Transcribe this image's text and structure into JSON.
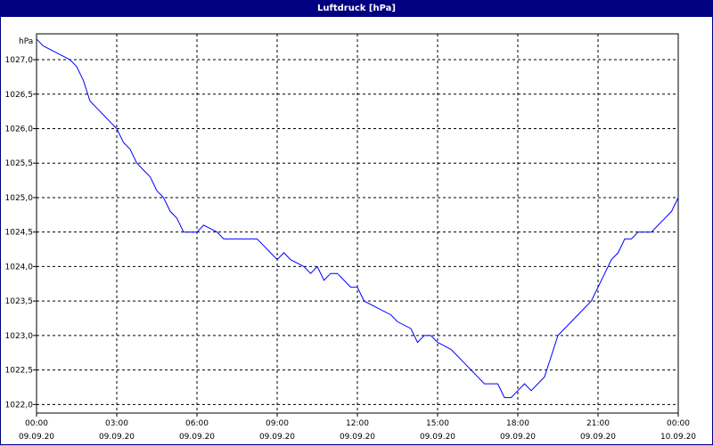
{
  "window": {
    "title": "Luftdruck [hPa]"
  },
  "colors": {
    "title_bar": "#000080",
    "series": "#0000ff",
    "grid": "#000000",
    "background": "#ffffff"
  },
  "chart_data": {
    "type": "line",
    "title": "Luftdruck [hPa]",
    "ylabel": "hPa",
    "xlabel": "",
    "ylim": [
      1021.875,
      1027.375
    ],
    "xlim_hours": [
      0,
      24
    ],
    "grid": true,
    "y_ticks": [
      {
        "value": 1027.0,
        "label": "1027,0"
      },
      {
        "value": 1026.5,
        "label": "1026,5"
      },
      {
        "value": 1026.0,
        "label": "1026,0"
      },
      {
        "value": 1025.5,
        "label": "1025,5"
      },
      {
        "value": 1025.0,
        "label": "1025,0"
      },
      {
        "value": 1024.5,
        "label": "1024,5"
      },
      {
        "value": 1024.0,
        "label": "1024,0"
      },
      {
        "value": 1023.5,
        "label": "1023,5"
      },
      {
        "value": 1023.0,
        "label": "1023,0"
      },
      {
        "value": 1022.5,
        "label": "1022,5"
      },
      {
        "value": 1022.0,
        "label": "1022,0"
      }
    ],
    "x_ticks": [
      {
        "hour": 0,
        "time": "00:00",
        "date": "09.09.20"
      },
      {
        "hour": 3,
        "time": "03:00",
        "date": "09.09.20"
      },
      {
        "hour": 6,
        "time": "06:00",
        "date": "09.09.20"
      },
      {
        "hour": 9,
        "time": "09:00",
        "date": "09.09.20"
      },
      {
        "hour": 12,
        "time": "12:00",
        "date": "09.09.20"
      },
      {
        "hour": 15,
        "time": "15:00",
        "date": "09.09.20"
      },
      {
        "hour": 18,
        "time": "18:00",
        "date": "09.09.20"
      },
      {
        "hour": 21,
        "time": "21:00",
        "date": "09.09.20"
      },
      {
        "hour": 24,
        "time": "00:00",
        "date": "10.09.20"
      }
    ],
    "series": [
      {
        "points": [
          [
            0.0,
            1027.3
          ],
          [
            0.25,
            1027.2
          ],
          [
            0.75,
            1027.1
          ],
          [
            1.25,
            1027.0
          ],
          [
            1.5,
            1026.9
          ],
          [
            1.75,
            1026.7
          ],
          [
            2.0,
            1026.4
          ],
          [
            2.25,
            1026.3
          ],
          [
            2.5,
            1026.2
          ],
          [
            2.75,
            1026.1
          ],
          [
            3.0,
            1026.0
          ],
          [
            3.25,
            1025.8
          ],
          [
            3.5,
            1025.7
          ],
          [
            3.75,
            1025.5
          ],
          [
            4.0,
            1025.4
          ],
          [
            4.25,
            1025.3
          ],
          [
            4.5,
            1025.1
          ],
          [
            4.75,
            1025.0
          ],
          [
            5.0,
            1024.8
          ],
          [
            5.25,
            1024.7
          ],
          [
            5.5,
            1024.5
          ],
          [
            6.0,
            1024.5
          ],
          [
            6.25,
            1024.6
          ],
          [
            6.75,
            1024.5
          ],
          [
            7.0,
            1024.4
          ],
          [
            8.25,
            1024.4
          ],
          [
            8.5,
            1024.3
          ],
          [
            8.75,
            1024.2
          ],
          [
            9.0,
            1024.1
          ],
          [
            9.25,
            1024.2
          ],
          [
            9.5,
            1024.1
          ],
          [
            10.0,
            1024.0
          ],
          [
            10.25,
            1023.9
          ],
          [
            10.5,
            1024.0
          ],
          [
            10.75,
            1023.8
          ],
          [
            11.0,
            1023.9
          ],
          [
            11.25,
            1023.9
          ],
          [
            11.5,
            1023.8
          ],
          [
            11.75,
            1023.7
          ],
          [
            12.0,
            1023.7
          ],
          [
            12.25,
            1023.5
          ],
          [
            12.75,
            1023.4
          ],
          [
            13.25,
            1023.3
          ],
          [
            13.5,
            1023.2
          ],
          [
            14.0,
            1023.1
          ],
          [
            14.25,
            1022.9
          ],
          [
            14.5,
            1023.0
          ],
          [
            14.75,
            1023.0
          ],
          [
            15.0,
            1022.9
          ],
          [
            15.5,
            1022.8
          ],
          [
            15.75,
            1022.7
          ],
          [
            16.0,
            1022.6
          ],
          [
            16.25,
            1022.5
          ],
          [
            16.5,
            1022.4
          ],
          [
            16.75,
            1022.3
          ],
          [
            17.25,
            1022.3
          ],
          [
            17.5,
            1022.1
          ],
          [
            17.75,
            1022.1
          ],
          [
            18.0,
            1022.2
          ],
          [
            18.25,
            1022.3
          ],
          [
            18.5,
            1022.2
          ],
          [
            18.75,
            1022.3
          ],
          [
            19.0,
            1022.4
          ],
          [
            19.25,
            1022.7
          ],
          [
            19.5,
            1023.0
          ],
          [
            19.75,
            1023.1
          ],
          [
            20.0,
            1023.2
          ],
          [
            20.25,
            1023.3
          ],
          [
            20.5,
            1023.4
          ],
          [
            20.75,
            1023.5
          ],
          [
            21.0,
            1023.7
          ],
          [
            21.25,
            1023.9
          ],
          [
            21.5,
            1024.1
          ],
          [
            21.75,
            1024.2
          ],
          [
            22.0,
            1024.4
          ],
          [
            22.25,
            1024.4
          ],
          [
            22.5,
            1024.5
          ],
          [
            23.0,
            1024.5
          ],
          [
            23.25,
            1024.6
          ],
          [
            23.5,
            1024.7
          ],
          [
            23.75,
            1024.8
          ],
          [
            24.0,
            1025.0
          ]
        ]
      }
    ]
  }
}
